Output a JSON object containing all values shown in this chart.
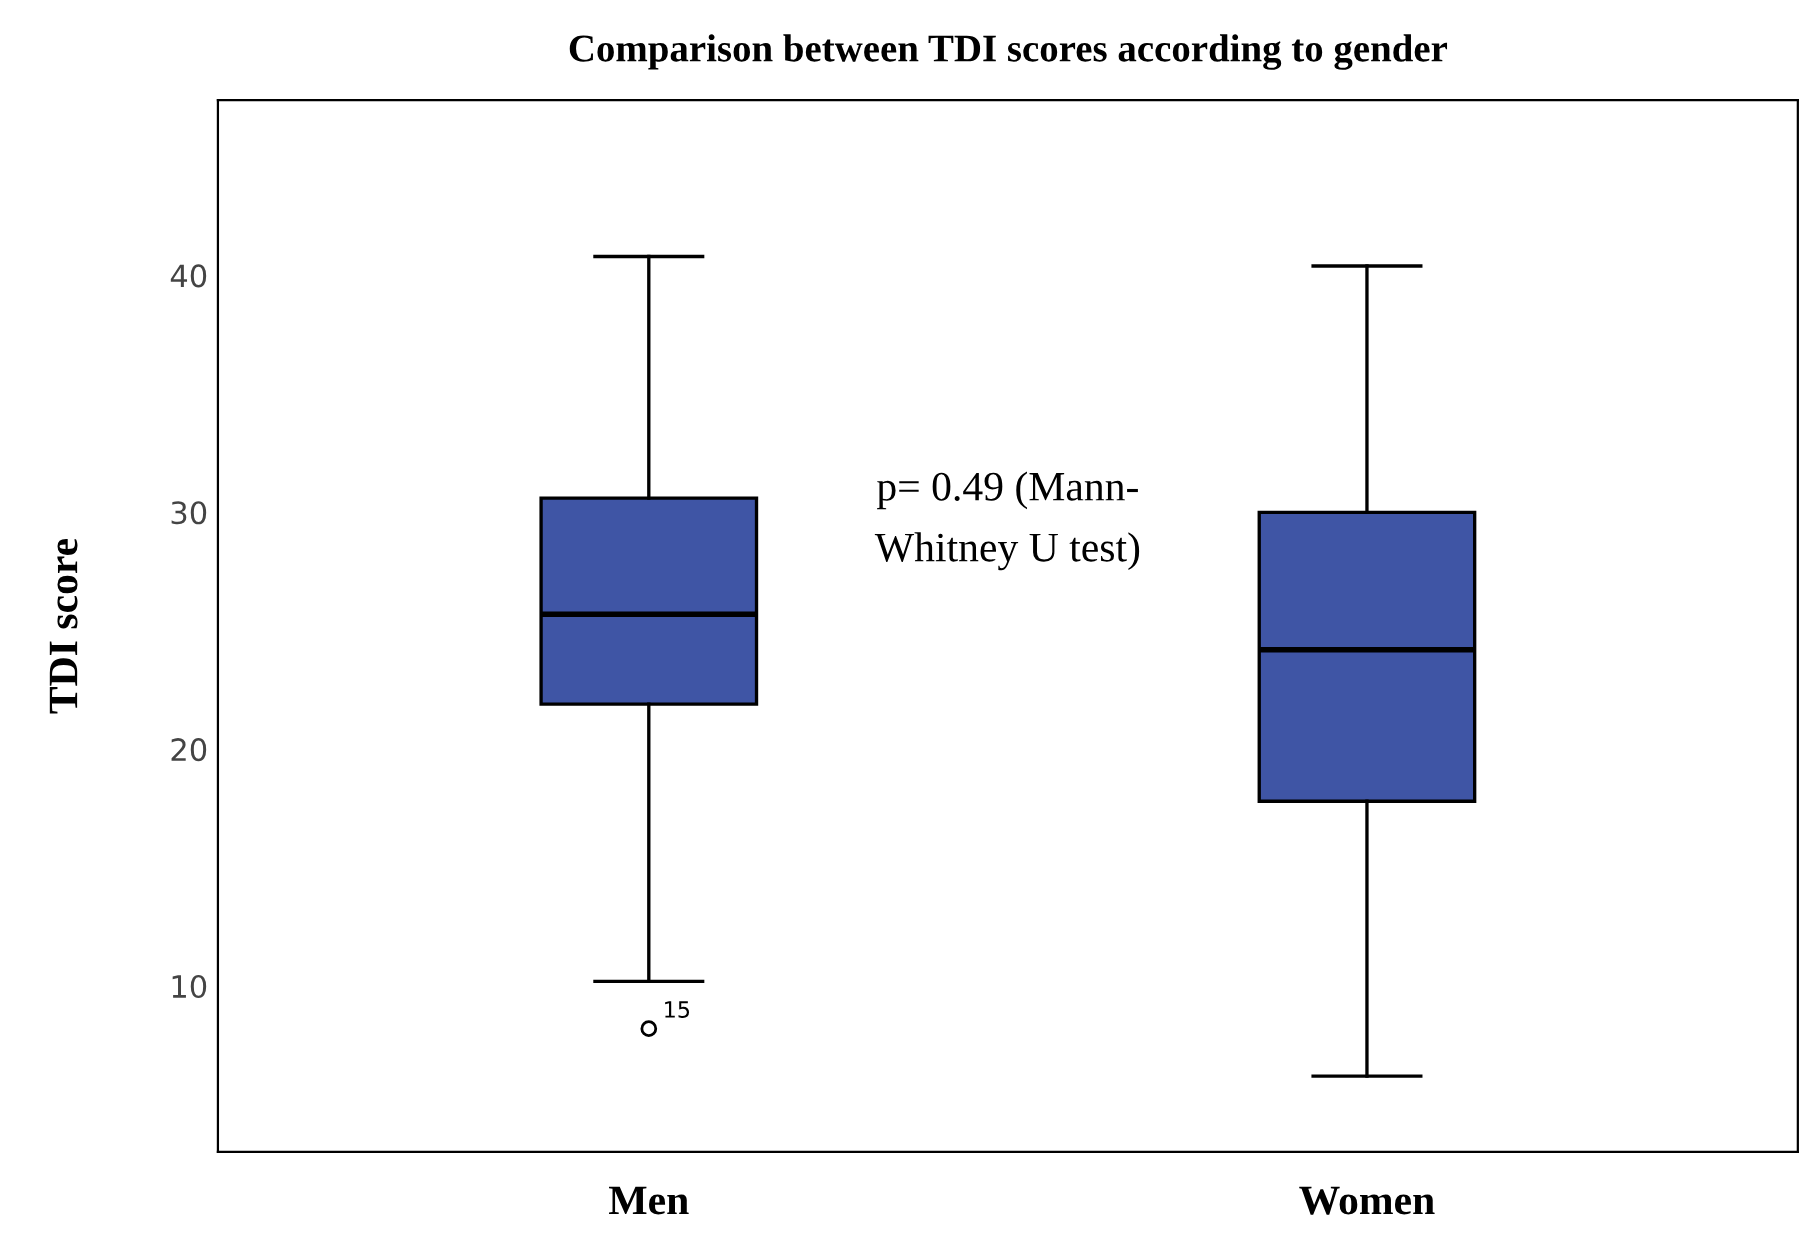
{
  "chart_data": {
    "type": "box",
    "title": "Comparison between TDI scores according to gender",
    "ylabel": "TDI score",
    "categories": [
      "Men",
      "Women"
    ],
    "boxes": [
      {
        "low": 10.2,
        "q1": 21.9,
        "median": 25.7,
        "q3": 30.6,
        "high": 40.8,
        "outliers": [
          8.2
        ]
      },
      {
        "low": 6.2,
        "q1": 17.8,
        "median": 24.2,
        "q3": 30.0,
        "high": 40.4
      }
    ],
    "color": "#3f55a5",
    "ylim": [
      3.0,
      47.4
    ],
    "yticks": [
      10,
      20,
      30,
      40
    ],
    "grid": false,
    "annotations": [
      "p= 0.49 (Mann-\nWhitney U test)",
      "15"
    ]
  }
}
